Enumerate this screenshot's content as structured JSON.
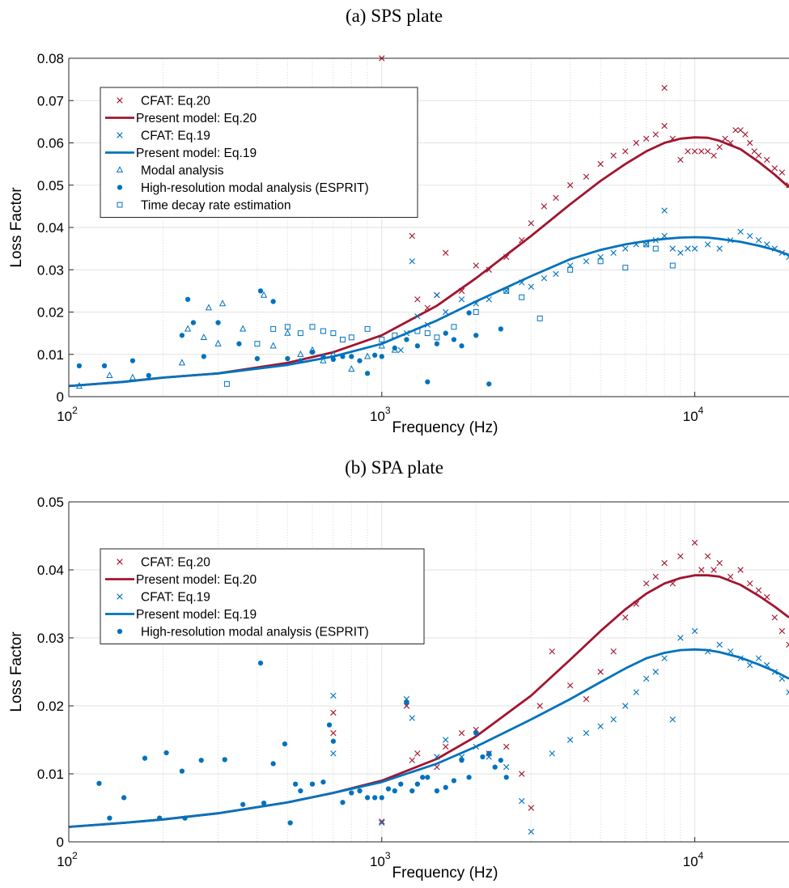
{
  "colors": {
    "red": "#a2142f",
    "blue": "#0072bd"
  },
  "chart_data": [
    {
      "type": "scatter",
      "title": "(a) SPS plate",
      "xlabel": "Frequency (Hz)",
      "ylabel": "Loss Factor",
      "xscale": "log",
      "xlim": [
        100,
        20000
      ],
      "ylim": [
        0,
        0.08
      ],
      "yticks": [
        0,
        0.01,
        0.02,
        0.03,
        0.04,
        0.05,
        0.06,
        0.07,
        0.08
      ],
      "ytick_labels": [
        "0",
        "0.01",
        "0.02",
        "0.03",
        "0.04",
        "0.05",
        "0.06",
        "0.07",
        "0.08"
      ],
      "xticks": [
        100,
        1000,
        10000
      ],
      "xtick_labels": [
        {
          "base": "10",
          "exp": "2"
        },
        {
          "base": "10",
          "exp": "3"
        },
        {
          "base": "10",
          "exp": "4"
        }
      ],
      "grid": true,
      "legend_position": "top-left",
      "series": [
        {
          "name": "CFAT: Eq.20",
          "kind": "x",
          "color": "#a2142f",
          "x": [
            1000,
            1250,
            1300,
            1400,
            1500,
            1600,
            1800,
            2000,
            2200,
            2500,
            2800,
            3000,
            3300,
            3600,
            4000,
            4500,
            5000,
            5500,
            6000,
            6500,
            7000,
            7500,
            8000,
            8000,
            8500,
            9000,
            9500,
            10000,
            10500,
            11000,
            11500,
            12000,
            12500,
            13000,
            13500,
            14000,
            14500,
            15000,
            15500,
            16000,
            17000,
            18000,
            19000,
            20000
          ],
          "y": [
            0.08,
            0.038,
            0.023,
            0.021,
            0.024,
            0.034,
            0.025,
            0.031,
            0.03,
            0.033,
            0.037,
            0.041,
            0.045,
            0.047,
            0.05,
            0.052,
            0.055,
            0.057,
            0.058,
            0.06,
            0.061,
            0.062,
            0.064,
            0.073,
            0.061,
            0.056,
            0.058,
            0.058,
            0.058,
            0.058,
            0.057,
            0.059,
            0.061,
            0.06,
            0.063,
            0.063,
            0.062,
            0.06,
            0.058,
            0.057,
            0.056,
            0.054,
            0.053,
            0.05
          ]
        },
        {
          "name": "Present model: Eq.20",
          "kind": "line",
          "color": "#a2142f",
          "x": [
            100,
            150,
            200,
            300,
            500,
            700,
            1000,
            1500,
            2000,
            3000,
            4000,
            5000,
            6000,
            7000,
            8000,
            9000,
            10000,
            11000,
            12000,
            14000,
            16000,
            18000,
            20000
          ],
          "y": [
            0.0025,
            0.0035,
            0.0045,
            0.0055,
            0.008,
            0.0105,
            0.0145,
            0.0215,
            0.028,
            0.038,
            0.0455,
            0.051,
            0.055,
            0.058,
            0.06,
            0.061,
            0.0613,
            0.0612,
            0.0605,
            0.0585,
            0.0555,
            0.0525,
            0.0495
          ]
        },
        {
          "name": "CFAT: Eq.19",
          "kind": "x",
          "color": "#0072bd",
          "x": [
            1150,
            1200,
            1250,
            1300,
            1400,
            1500,
            1600,
            1800,
            2000,
            2200,
            2500,
            2800,
            3000,
            3300,
            3600,
            4000,
            4500,
            5000,
            5500,
            6000,
            6500,
            7000,
            7500,
            8000,
            8000,
            8500,
            9000,
            9500,
            10000,
            11000,
            12000,
            13000,
            14000,
            15000,
            16000,
            17000,
            18000,
            19000,
            20000
          ],
          "y": [
            0.011,
            0.015,
            0.032,
            0.019,
            0.017,
            0.024,
            0.02,
            0.023,
            0.022,
            0.023,
            0.025,
            0.027,
            0.026,
            0.028,
            0.029,
            0.031,
            0.032,
            0.033,
            0.034,
            0.035,
            0.036,
            0.036,
            0.037,
            0.038,
            0.044,
            0.035,
            0.034,
            0.035,
            0.035,
            0.036,
            0.035,
            0.037,
            0.039,
            0.038,
            0.037,
            0.036,
            0.035,
            0.034,
            0.033
          ]
        },
        {
          "name": "Present model: Eq.19",
          "kind": "line",
          "color": "#0072bd",
          "x": [
            100,
            150,
            200,
            300,
            500,
            700,
            1000,
            1500,
            2000,
            3000,
            4000,
            5000,
            6000,
            7000,
            8000,
            9000,
            10000,
            11000,
            12000,
            14000,
            16000,
            18000,
            20000
          ],
          "y": [
            0.0025,
            0.0035,
            0.0045,
            0.0055,
            0.0075,
            0.0095,
            0.0125,
            0.018,
            0.0225,
            0.0285,
            0.0325,
            0.0347,
            0.036,
            0.0368,
            0.0373,
            0.0376,
            0.0377,
            0.0376,
            0.0373,
            0.0366,
            0.0357,
            0.0347,
            0.0335
          ]
        },
        {
          "name": "Modal analysis",
          "kind": "triangle",
          "color": "#0072bd",
          "x": [
            108,
            135,
            160,
            230,
            240,
            270,
            280,
            300,
            310,
            360,
            420,
            450,
            500,
            550,
            600,
            650,
            700,
            800,
            900,
            1000,
            1100
          ],
          "y": [
            0.0025,
            0.005,
            0.0045,
            0.008,
            0.016,
            0.014,
            0.021,
            0.0125,
            0.022,
            0.016,
            0.024,
            0.012,
            0.015,
            0.01,
            0.011,
            0.0085,
            0.01,
            0.0065,
            0.0095,
            0.012,
            0.011
          ]
        },
        {
          "name": "High-resolution modal analysis (ESPRIT)",
          "kind": "dot",
          "color": "#0072bd",
          "x": [
            108,
            130,
            160,
            180,
            230,
            240,
            250,
            270,
            300,
            350,
            400,
            410,
            450,
            500,
            550,
            600,
            650,
            700,
            750,
            800,
            850,
            900,
            950,
            1000,
            1100,
            1200,
            1300,
            1400,
            1500,
            1600,
            1700,
            1800,
            1900,
            2000,
            2200,
            2400
          ],
          "y": [
            0.0073,
            0.0073,
            0.0085,
            0.005,
            0.0145,
            0.023,
            0.0175,
            0.0095,
            0.0175,
            0.0125,
            0.009,
            0.025,
            0.0225,
            0.009,
            0.0085,
            0.0105,
            0.0095,
            0.0088,
            0.0095,
            0.0095,
            0.0085,
            0.0055,
            0.0098,
            0.0095,
            0.0115,
            0.0135,
            0.012,
            0.0035,
            0.0125,
            0.015,
            0.0135,
            0.012,
            0.0198,
            0.0145,
            0.003,
            0.016
          ]
        },
        {
          "name": "Time decay rate estimation",
          "kind": "square",
          "color": "#0072bd",
          "x": [
            320,
            400,
            450,
            500,
            550,
            600,
            650,
            700,
            750,
            800,
            900,
            1000,
            1100,
            1300,
            1400,
            1500,
            1700,
            2000,
            2500,
            2800,
            3200,
            4000,
            5000,
            6000,
            7000,
            7500,
            8500
          ],
          "y": [
            0.003,
            0.0125,
            0.016,
            0.0165,
            0.015,
            0.0165,
            0.0155,
            0.015,
            0.0135,
            0.014,
            0.016,
            0.0135,
            0.0145,
            0.0155,
            0.015,
            0.014,
            0.0165,
            0.02,
            0.025,
            0.0235,
            0.0185,
            0.03,
            0.032,
            0.0305,
            0.036,
            0.035,
            0.031
          ]
        }
      ]
    },
    {
      "type": "scatter",
      "title": "(b) SPA plate",
      "xlabel": "Frequency (Hz)",
      "ylabel": "Loss Factor",
      "xscale": "log",
      "xlim": [
        100,
        20000
      ],
      "ylim": [
        0,
        0.05
      ],
      "yticks": [
        0,
        0.01,
        0.02,
        0.03,
        0.04,
        0.05
      ],
      "ytick_labels": [
        "0",
        "0.01",
        "0.02",
        "0.03",
        "0.04",
        "0.05"
      ],
      "xticks": [
        100,
        1000,
        10000
      ],
      "xtick_labels": [
        {
          "base": "10",
          "exp": "2"
        },
        {
          "base": "10",
          "exp": "3"
        },
        {
          "base": "10",
          "exp": "4"
        }
      ],
      "grid": true,
      "legend_position": "top-left",
      "series": [
        {
          "name": "CFAT: Eq.20",
          "kind": "x",
          "color": "#a2142f",
          "x": [
            700,
            700,
            1000,
            1200,
            1250,
            1300,
            1500,
            1600,
            1800,
            2000,
            2200,
            2500,
            2800,
            3000,
            3200,
            3500,
            4000,
            4500,
            5000,
            5500,
            6000,
            6500,
            7000,
            7500,
            8000,
            8500,
            9000,
            10000,
            10500,
            11000,
            11500,
            12000,
            13000,
            14000,
            15000,
            16000,
            17000,
            18000,
            19000,
            20000
          ],
          "y": [
            0.019,
            0.016,
            0.003,
            0.02,
            0.012,
            0.013,
            0.011,
            0.014,
            0.016,
            0.0165,
            0.013,
            0.014,
            0.01,
            0.005,
            0.02,
            0.028,
            0.023,
            0.021,
            0.025,
            0.028,
            0.033,
            0.035,
            0.038,
            0.039,
            0.041,
            0.038,
            0.042,
            0.044,
            0.04,
            0.042,
            0.04,
            0.041,
            0.039,
            0.04,
            0.038,
            0.037,
            0.036,
            0.033,
            0.031,
            0.029
          ]
        },
        {
          "name": "Present model: Eq.20",
          "kind": "line",
          "color": "#a2142f",
          "x": [
            100,
            150,
            200,
            300,
            500,
            700,
            1000,
            1500,
            2000,
            3000,
            4000,
            5000,
            6000,
            7000,
            8000,
            9000,
            10000,
            11000,
            12000,
            14000,
            16000,
            18000,
            20000
          ],
          "y": [
            0.0022,
            0.0028,
            0.0033,
            0.0042,
            0.0058,
            0.0072,
            0.009,
            0.0122,
            0.0155,
            0.0215,
            0.0268,
            0.031,
            0.0342,
            0.0365,
            0.038,
            0.0388,
            0.0392,
            0.0392,
            0.039,
            0.0378,
            0.0362,
            0.0346,
            0.033
          ]
        },
        {
          "name": "CFAT: Eq.19",
          "kind": "x",
          "color": "#0072bd",
          "x": [
            700,
            700,
            1000,
            1200,
            1250,
            1500,
            1600,
            1800,
            2000,
            2200,
            2500,
            2800,
            3000,
            3500,
            4000,
            4500,
            5000,
            5500,
            6000,
            6500,
            7000,
            7500,
            8000,
            8500,
            9000,
            10000,
            11000,
            12000,
            13000,
            14000,
            15000,
            16000,
            17000,
            18000,
            19000,
            20000
          ],
          "y": [
            0.0215,
            0.013,
            0.0028,
            0.021,
            0.0182,
            0.0125,
            0.015,
            0.0125,
            0.014,
            0.0125,
            0.011,
            0.006,
            0.0015,
            0.013,
            0.015,
            0.016,
            0.017,
            0.018,
            0.02,
            0.022,
            0.024,
            0.025,
            0.027,
            0.018,
            0.03,
            0.031,
            0.028,
            0.029,
            0.028,
            0.027,
            0.026,
            0.027,
            0.026,
            0.025,
            0.024,
            0.022
          ]
        },
        {
          "name": "Present model: Eq.19",
          "kind": "line",
          "color": "#0072bd",
          "x": [
            100,
            150,
            200,
            300,
            500,
            700,
            1000,
            1500,
            2000,
            3000,
            4000,
            5000,
            6000,
            7000,
            8000,
            9000,
            10000,
            11000,
            12000,
            14000,
            16000,
            18000,
            20000
          ],
          "y": [
            0.0022,
            0.0028,
            0.0033,
            0.0042,
            0.0058,
            0.0072,
            0.0088,
            0.0115,
            0.014,
            0.018,
            0.021,
            0.0235,
            0.0255,
            0.027,
            0.0278,
            0.0282,
            0.0283,
            0.0282,
            0.0279,
            0.0271,
            0.0261,
            0.0251,
            0.024
          ]
        },
        {
          "name": "High-resolution modal analysis (ESPRIT)",
          "kind": "dot",
          "color": "#0072bd",
          "x": [
            125,
            135,
            150,
            175,
            195,
            205,
            230,
            235,
            265,
            315,
            360,
            410,
            420,
            450,
            490,
            510,
            530,
            550,
            600,
            650,
            680,
            700,
            750,
            800,
            850,
            900,
            950,
            1000,
            1050,
            1100,
            1150,
            1200,
            1250,
            1300,
            1350,
            1400,
            1500,
            1600,
            1700,
            1800,
            1900,
            2000,
            2100,
            2200,
            2300,
            2400,
            2500
          ],
          "y": [
            0.0086,
            0.0035,
            0.0065,
            0.0123,
            0.0035,
            0.0131,
            0.0104,
            0.0035,
            0.012,
            0.0121,
            0.0055,
            0.0263,
            0.0057,
            0.0115,
            0.0144,
            0.0028,
            0.0085,
            0.0075,
            0.0085,
            0.0088,
            0.0172,
            0.0148,
            0.0058,
            0.0072,
            0.0075,
            0.0065,
            0.0065,
            0.0065,
            0.0078,
            0.0075,
            0.0085,
            0.0205,
            0.0075,
            0.0085,
            0.0095,
            0.0095,
            0.0075,
            0.008,
            0.009,
            0.012,
            0.0095,
            0.016,
            0.0125,
            0.013,
            0.011,
            0.012,
            0.0095
          ]
        }
      ]
    }
  ]
}
